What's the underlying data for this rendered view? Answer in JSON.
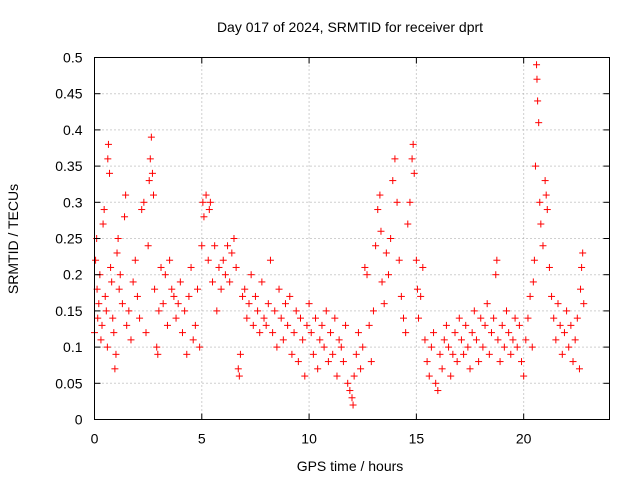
{
  "chart_data": {
    "type": "scatter",
    "title": "Day 017 of 2024, SRMTID for receiver dprt",
    "xlabel": "GPS time / hours",
    "ylabel": "SRMTID / TECUs",
    "xlim": [
      0,
      24
    ],
    "ylim": [
      0,
      0.5
    ],
    "xticks": [
      0,
      5,
      10,
      15,
      20
    ],
    "xtick_labels": [
      "0",
      "5",
      "10",
      "15",
      "20"
    ],
    "yticks": [
      0,
      0.05,
      0.1,
      0.15,
      0.2,
      0.25,
      0.3,
      0.35,
      0.4,
      0.45,
      0.5
    ],
    "ytick_labels": [
      "0",
      "0.05",
      "0.1",
      "0.15",
      "0.2",
      "0.25",
      "0.3",
      "0.35",
      "0.4",
      "0.45",
      "0.5"
    ],
    "grid": true,
    "marker": "plus",
    "color": "#ff0000",
    "series": [
      {
        "name": "SRMTID",
        "points": [
          [
            0.0,
            0.12
          ],
          [
            0.05,
            0.22
          ],
          [
            0.1,
            0.25
          ],
          [
            0.12,
            0.18
          ],
          [
            0.15,
            0.14
          ],
          [
            0.2,
            0.16
          ],
          [
            0.25,
            0.2
          ],
          [
            0.3,
            0.11
          ],
          [
            0.35,
            0.13
          ],
          [
            0.4,
            0.27
          ],
          [
            0.45,
            0.29
          ],
          [
            0.5,
            0.17
          ],
          [
            0.55,
            0.15
          ],
          [
            0.6,
            0.1
          ],
          [
            0.62,
            0.36
          ],
          [
            0.65,
            0.38
          ],
          [
            0.7,
            0.34
          ],
          [
            0.75,
            0.21
          ],
          [
            0.8,
            0.19
          ],
          [
            0.85,
            0.14
          ],
          [
            0.9,
            0.12
          ],
          [
            0.95,
            0.07
          ],
          [
            1.0,
            0.09
          ],
          [
            1.05,
            0.23
          ],
          [
            1.1,
            0.25
          ],
          [
            1.15,
            0.18
          ],
          [
            1.2,
            0.2
          ],
          [
            1.3,
            0.16
          ],
          [
            1.4,
            0.28
          ],
          [
            1.45,
            0.31
          ],
          [
            1.5,
            0.13
          ],
          [
            1.6,
            0.15
          ],
          [
            1.7,
            0.11
          ],
          [
            1.8,
            0.19
          ],
          [
            1.9,
            0.22
          ],
          [
            2.0,
            0.17
          ],
          [
            2.1,
            0.14
          ],
          [
            2.2,
            0.29
          ],
          [
            2.3,
            0.3
          ],
          [
            2.4,
            0.12
          ],
          [
            2.5,
            0.24
          ],
          [
            2.55,
            0.33
          ],
          [
            2.6,
            0.36
          ],
          [
            2.65,
            0.39
          ],
          [
            2.7,
            0.34
          ],
          [
            2.75,
            0.31
          ],
          [
            2.8,
            0.18
          ],
          [
            2.9,
            0.1
          ],
          [
            2.95,
            0.09
          ],
          [
            3.0,
            0.15
          ],
          [
            3.1,
            0.21
          ],
          [
            3.2,
            0.16
          ],
          [
            3.3,
            0.2
          ],
          [
            3.4,
            0.13
          ],
          [
            3.5,
            0.22
          ],
          [
            3.6,
            0.18
          ],
          [
            3.7,
            0.17
          ],
          [
            3.8,
            0.14
          ],
          [
            3.9,
            0.16
          ],
          [
            4.0,
            0.19
          ],
          [
            4.1,
            0.12
          ],
          [
            4.2,
            0.15
          ],
          [
            4.3,
            0.09
          ],
          [
            4.4,
            0.17
          ],
          [
            4.5,
            0.21
          ],
          [
            4.6,
            0.11
          ],
          [
            4.7,
            0.13
          ],
          [
            4.8,
            0.18
          ],
          [
            4.9,
            0.1
          ],
          [
            5.0,
            0.24
          ],
          [
            5.05,
            0.3
          ],
          [
            5.1,
            0.28
          ],
          [
            5.2,
            0.31
          ],
          [
            5.3,
            0.22
          ],
          [
            5.35,
            0.29
          ],
          [
            5.4,
            0.3
          ],
          [
            5.5,
            0.19
          ],
          [
            5.6,
            0.24
          ],
          [
            5.7,
            0.15
          ],
          [
            5.8,
            0.21
          ],
          [
            5.9,
            0.18
          ],
          [
            6.0,
            0.22
          ],
          [
            6.1,
            0.2
          ],
          [
            6.2,
            0.24
          ],
          [
            6.3,
            0.19
          ],
          [
            6.4,
            0.23
          ],
          [
            6.5,
            0.25
          ],
          [
            6.6,
            0.21
          ],
          [
            6.7,
            0.07
          ],
          [
            6.75,
            0.06
          ],
          [
            6.8,
            0.09
          ],
          [
            6.9,
            0.17
          ],
          [
            7.0,
            0.18
          ],
          [
            7.1,
            0.14
          ],
          [
            7.2,
            0.16
          ],
          [
            7.3,
            0.2
          ],
          [
            7.4,
            0.13
          ],
          [
            7.5,
            0.17
          ],
          [
            7.6,
            0.15
          ],
          [
            7.7,
            0.12
          ],
          [
            7.8,
            0.19
          ],
          [
            7.9,
            0.14
          ],
          [
            8.0,
            0.13
          ],
          [
            8.1,
            0.16
          ],
          [
            8.2,
            0.22
          ],
          [
            8.3,
            0.12
          ],
          [
            8.4,
            0.15
          ],
          [
            8.5,
            0.1
          ],
          [
            8.6,
            0.18
          ],
          [
            8.7,
            0.14
          ],
          [
            8.8,
            0.11
          ],
          [
            8.9,
            0.16
          ],
          [
            9.0,
            0.13
          ],
          [
            9.1,
            0.17
          ],
          [
            9.2,
            0.09
          ],
          [
            9.3,
            0.12
          ],
          [
            9.4,
            0.15
          ],
          [
            9.5,
            0.08
          ],
          [
            9.6,
            0.14
          ],
          [
            9.7,
            0.11
          ],
          [
            9.8,
            0.06
          ],
          [
            9.9,
            0.13
          ],
          [
            10.0,
            0.16
          ],
          [
            10.1,
            0.12
          ],
          [
            10.2,
            0.09
          ],
          [
            10.3,
            0.14
          ],
          [
            10.4,
            0.07
          ],
          [
            10.5,
            0.11
          ],
          [
            10.6,
            0.13
          ],
          [
            10.7,
            0.1
          ],
          [
            10.8,
            0.15
          ],
          [
            10.9,
            0.08
          ],
          [
            11.0,
            0.12
          ],
          [
            11.1,
            0.09
          ],
          [
            11.2,
            0.14
          ],
          [
            11.3,
            0.06
          ],
          [
            11.4,
            0.11
          ],
          [
            11.5,
            0.1
          ],
          [
            11.6,
            0.08
          ],
          [
            11.7,
            0.13
          ],
          [
            11.8,
            0.05
          ],
          [
            11.9,
            0.04
          ],
          [
            12.0,
            0.03
          ],
          [
            12.05,
            0.02
          ],
          [
            12.1,
            0.06
          ],
          [
            12.2,
            0.09
          ],
          [
            12.3,
            0.12
          ],
          [
            12.4,
            0.07
          ],
          [
            12.5,
            0.1
          ],
          [
            12.6,
            0.21
          ],
          [
            12.7,
            0.2
          ],
          [
            12.8,
            0.13
          ],
          [
            12.9,
            0.08
          ],
          [
            13.0,
            0.15
          ],
          [
            13.1,
            0.24
          ],
          [
            13.2,
            0.29
          ],
          [
            13.3,
            0.31
          ],
          [
            13.35,
            0.26
          ],
          [
            13.4,
            0.19
          ],
          [
            13.5,
            0.16
          ],
          [
            13.6,
            0.23
          ],
          [
            13.7,
            0.2
          ],
          [
            13.8,
            0.25
          ],
          [
            13.9,
            0.33
          ],
          [
            14.0,
            0.36
          ],
          [
            14.1,
            0.3
          ],
          [
            14.2,
            0.22
          ],
          [
            14.3,
            0.17
          ],
          [
            14.4,
            0.14
          ],
          [
            14.5,
            0.12
          ],
          [
            14.6,
            0.27
          ],
          [
            14.7,
            0.3
          ],
          [
            14.8,
            0.36
          ],
          [
            14.85,
            0.38
          ],
          [
            14.9,
            0.34
          ],
          [
            15.0,
            0.22
          ],
          [
            15.05,
            0.18
          ],
          [
            15.1,
            0.14
          ],
          [
            15.2,
            0.17
          ],
          [
            15.3,
            0.21
          ],
          [
            15.4,
            0.11
          ],
          [
            15.5,
            0.08
          ],
          [
            15.6,
            0.06
          ],
          [
            15.7,
            0.1
          ],
          [
            15.8,
            0.12
          ],
          [
            15.9,
            0.05
          ],
          [
            16.0,
            0.04
          ],
          [
            16.1,
            0.09
          ],
          [
            16.2,
            0.07
          ],
          [
            16.3,
            0.11
          ],
          [
            16.4,
            0.13
          ],
          [
            16.5,
            0.1
          ],
          [
            16.6,
            0.06
          ],
          [
            16.7,
            0.09
          ],
          [
            16.8,
            0.12
          ],
          [
            16.9,
            0.08
          ],
          [
            17.0,
            0.14
          ],
          [
            17.1,
            0.11
          ],
          [
            17.2,
            0.09
          ],
          [
            17.3,
            0.13
          ],
          [
            17.4,
            0.1
          ],
          [
            17.5,
            0.07
          ],
          [
            17.6,
            0.12
          ],
          [
            17.7,
            0.15
          ],
          [
            17.8,
            0.11
          ],
          [
            17.9,
            0.08
          ],
          [
            18.0,
            0.14
          ],
          [
            18.1,
            0.1
          ],
          [
            18.2,
            0.13
          ],
          [
            18.3,
            0.16
          ],
          [
            18.4,
            0.09
          ],
          [
            18.5,
            0.12
          ],
          [
            18.6,
            0.14
          ],
          [
            18.7,
            0.2
          ],
          [
            18.75,
            0.22
          ],
          [
            18.8,
            0.11
          ],
          [
            18.9,
            0.08
          ],
          [
            19.0,
            0.13
          ],
          [
            19.1,
            0.1
          ],
          [
            19.2,
            0.15
          ],
          [
            19.3,
            0.12
          ],
          [
            19.4,
            0.09
          ],
          [
            19.5,
            0.11
          ],
          [
            19.6,
            0.14
          ],
          [
            19.7,
            0.1
          ],
          [
            19.8,
            0.13
          ],
          [
            19.9,
            0.08
          ],
          [
            20.0,
            0.06
          ],
          [
            20.1,
            0.11
          ],
          [
            20.2,
            0.14
          ],
          [
            20.3,
            0.17
          ],
          [
            20.4,
            0.1
          ],
          [
            20.45,
            0.19
          ],
          [
            20.5,
            0.22
          ],
          [
            20.55,
            0.35
          ],
          [
            20.6,
            0.49
          ],
          [
            20.62,
            0.47
          ],
          [
            20.65,
            0.44
          ],
          [
            20.7,
            0.41
          ],
          [
            20.75,
            0.3
          ],
          [
            20.8,
            0.27
          ],
          [
            20.9,
            0.24
          ],
          [
            21.0,
            0.33
          ],
          [
            21.05,
            0.31
          ],
          [
            21.1,
            0.29
          ],
          [
            21.2,
            0.21
          ],
          [
            21.3,
            0.17
          ],
          [
            21.4,
            0.14
          ],
          [
            21.5,
            0.11
          ],
          [
            21.6,
            0.16
          ],
          [
            21.7,
            0.13
          ],
          [
            21.8,
            0.09
          ],
          [
            21.9,
            0.12
          ],
          [
            22.0,
            0.15
          ],
          [
            22.1,
            0.1
          ],
          [
            22.2,
            0.13
          ],
          [
            22.3,
            0.08
          ],
          [
            22.4,
            0.11
          ],
          [
            22.5,
            0.14
          ],
          [
            22.6,
            0.07
          ],
          [
            22.65,
            0.18
          ],
          [
            22.7,
            0.21
          ],
          [
            22.75,
            0.23
          ],
          [
            22.8,
            0.16
          ]
        ]
      }
    ]
  }
}
